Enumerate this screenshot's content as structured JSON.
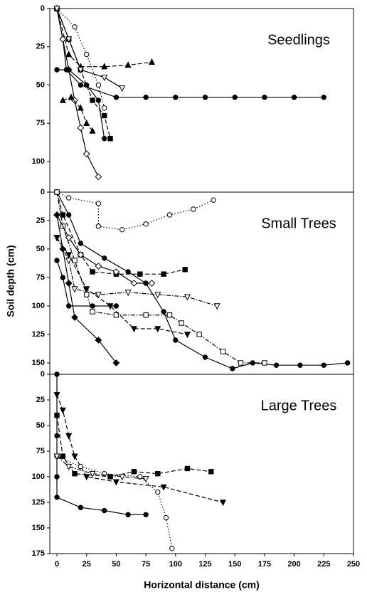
{
  "chart_data": [
    {
      "type": "line",
      "title": "Seedlings",
      "xlim": [
        -6,
        250
      ],
      "ylim": [
        0,
        120
      ],
      "yticks": [
        0,
        25,
        50,
        75,
        100
      ],
      "series": [
        {
          "color": "#000",
          "marker": "circle",
          "filled": true,
          "dash": "solid",
          "x": [
            0,
            5,
            8,
            20,
            50,
            75,
            100,
            125,
            150,
            175,
            200,
            225
          ],
          "values": [
            0,
            20,
            40,
            50,
            58,
            58,
            58,
            58,
            58,
            58,
            58,
            58
          ]
        },
        {
          "color": "#000",
          "marker": "triangle",
          "filled": true,
          "dash": "dashed",
          "x": [
            0,
            10,
            20,
            40,
            60,
            80
          ],
          "values": [
            0,
            30,
            38,
            38,
            37,
            35
          ]
        },
        {
          "color": "#000",
          "marker": "diamond",
          "filled": false,
          "dash": "solid",
          "x": [
            0,
            5,
            10,
            15,
            20,
            25,
            35
          ],
          "values": [
            0,
            20,
            40,
            60,
            78,
            95,
            110
          ]
        },
        {
          "color": "#000",
          "marker": "square",
          "filled": true,
          "dash": "dashed",
          "x": [
            0,
            10,
            20,
            30,
            40,
            45
          ],
          "values": [
            0,
            20,
            40,
            60,
            70,
            85
          ]
        },
        {
          "color": "#000",
          "marker": "circle",
          "filled": false,
          "dash": "dotted",
          "x": [
            0,
            15,
            25,
            35,
            40
          ],
          "values": [
            0,
            12,
            30,
            50,
            65
          ]
        },
        {
          "color": "#000",
          "marker": "triangle-down",
          "filled": false,
          "dash": "solid",
          "x": [
            0,
            10,
            20,
            40,
            55
          ],
          "values": [
            0,
            20,
            40,
            45,
            52
          ]
        },
        {
          "color": "#000",
          "marker": "circle",
          "filled": true,
          "dash": "solid",
          "x": [
            0,
            10,
            25,
            35,
            40
          ],
          "values": [
            40,
            40,
            50,
            60,
            85
          ]
        },
        {
          "color": "#000",
          "marker": "triangle",
          "filled": true,
          "dash": "dashed",
          "x": [
            5,
            12,
            20,
            25,
            30
          ],
          "values": [
            60,
            58,
            65,
            75,
            80
          ]
        }
      ]
    },
    {
      "type": "line",
      "title": "Small Trees",
      "ylabel": "Soil depth (cm)",
      "xlim": [
        -6,
        250
      ],
      "ylim": [
        0,
        160
      ],
      "yticks": [
        0,
        25,
        50,
        75,
        100,
        125,
        150
      ],
      "series": [
        {
          "color": "#000",
          "marker": "circle",
          "filled": false,
          "dash": "dotted",
          "x": [
            0,
            10,
            35,
            35,
            55,
            75,
            95,
            115,
            132
          ],
          "values": [
            0,
            5,
            10,
            30,
            33,
            28,
            20,
            15,
            7
          ]
        },
        {
          "color": "#000",
          "marker": "circle",
          "filled": true,
          "dash": "solid",
          "x": [
            0,
            10,
            20,
            40,
            60,
            75,
            90,
            100,
            125,
            148,
            165,
            185,
            205,
            225,
            245
          ],
          "values": [
            0,
            20,
            45,
            58,
            70,
            80,
            105,
            130,
            145,
            155,
            150,
            152,
            152,
            152,
            150
          ]
        },
        {
          "color": "#000",
          "marker": "square",
          "filled": true,
          "dash": "dashed",
          "x": [
            0,
            5,
            20,
            30,
            50,
            70,
            90,
            108
          ],
          "values": [
            0,
            20,
            55,
            70,
            72,
            72,
            72,
            68
          ]
        },
        {
          "color": "#000",
          "marker": "square",
          "filled": false,
          "dash": "dashdot",
          "x": [
            0,
            5,
            15,
            25,
            30,
            50,
            75,
            95,
            105,
            120,
            140,
            155,
            175
          ],
          "values": [
            0,
            30,
            60,
            90,
            105,
            108,
            108,
            108,
            115,
            125,
            140,
            150,
            150
          ]
        },
        {
          "color": "#000",
          "marker": "triangle-down",
          "filled": false,
          "dash": "dashdot",
          "x": [
            0,
            10,
            15,
            35,
            60,
            85,
            110,
            135
          ],
          "values": [
            40,
            60,
            85,
            90,
            88,
            90,
            92,
            100
          ]
        },
        {
          "color": "#000",
          "marker": "diamond",
          "filled": false,
          "dash": "solid",
          "x": [
            0,
            10,
            20,
            35,
            50,
            65,
            80
          ],
          "values": [
            20,
            40,
            55,
            65,
            70,
            80,
            80
          ]
        },
        {
          "color": "#000",
          "marker": "diamond",
          "filled": true,
          "dash": "solid",
          "x": [
            0,
            5,
            10,
            15,
            35,
            50
          ],
          "values": [
            20,
            50,
            80,
            110,
            130,
            150
          ]
        },
        {
          "color": "#000",
          "marker": "triangle-down",
          "filled": true,
          "dash": "dashed",
          "x": [
            0,
            10,
            25,
            45,
            65,
            85,
            110
          ],
          "values": [
            40,
            55,
            85,
            100,
            120,
            120,
            125
          ]
        },
        {
          "color": "#000",
          "marker": "circle",
          "filled": true,
          "dash": "solid",
          "x": [
            0,
            5,
            10,
            30,
            50
          ],
          "values": [
            60,
            75,
            100,
            100,
            100
          ]
        }
      ]
    },
    {
      "type": "line",
      "title": "Large Trees",
      "xlabel": "Horizontal distance (cm)",
      "xlim": [
        -6,
        250
      ],
      "xticks": [
        0,
        25,
        50,
        75,
        100,
        125,
        150,
        175,
        200,
        225,
        250
      ],
      "ylim": [
        0,
        175
      ],
      "yticks": [
        0,
        25,
        50,
        75,
        100,
        125,
        150,
        175
      ],
      "series": [
        {
          "color": "#000",
          "marker": "circle",
          "filled": true,
          "dash": "solid",
          "x": [
            0,
            0,
            0,
            0,
            20,
            40,
            60,
            75
          ],
          "values": [
            0,
            60,
            100,
            120,
            130,
            133,
            137,
            137
          ]
        },
        {
          "color": "#000",
          "marker": "triangle-down",
          "filled": true,
          "dash": "dashed",
          "x": [
            0,
            5,
            10,
            15,
            25,
            50,
            90,
            140
          ],
          "values": [
            20,
            35,
            60,
            80,
            100,
            105,
            110,
            125
          ]
        },
        {
          "color": "#000",
          "marker": "square",
          "filled": true,
          "dash": "dashed",
          "x": [
            0,
            5,
            15,
            45,
            65,
            85,
            110,
            130
          ],
          "values": [
            40,
            80,
            97,
            100,
            95,
            97,
            92,
            95
          ]
        },
        {
          "color": "#000",
          "marker": "circle",
          "filled": false,
          "dash": "dotted",
          "x": [
            0,
            20,
            40,
            70,
            85,
            92,
            97
          ],
          "values": [
            80,
            90,
            97,
            100,
            115,
            140,
            170
          ]
        },
        {
          "color": "#000",
          "marker": "triangle-down",
          "filled": false,
          "dash": "dashdot",
          "x": [
            0,
            10,
            30,
            55,
            75
          ],
          "values": [
            80,
            90,
            97,
            100,
            102
          ]
        }
      ]
    }
  ]
}
